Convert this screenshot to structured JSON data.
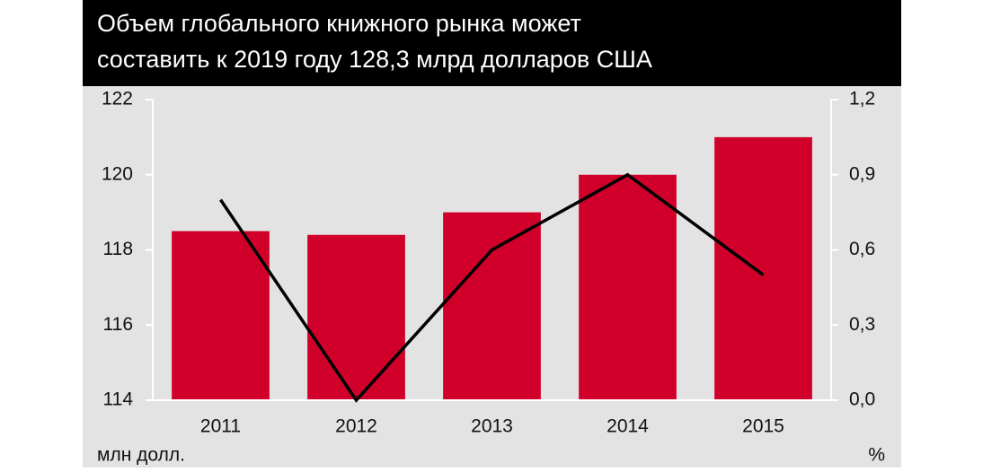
{
  "chart_data": {
    "type": "bar-line",
    "title": [
      "Объем глобального книжного рынка может",
      "составить к 2019 году 128,3 млрд долларов США"
    ],
    "categories": [
      "2011",
      "2012",
      "2013",
      "2014",
      "2015"
    ],
    "series": [
      {
        "type": "bar",
        "color": "#d0002a",
        "values": [
          118.5,
          118.4,
          119,
          120,
          121
        ]
      },
      {
        "type": "line",
        "color": "#000000",
        "axis": "y2",
        "values": [
          0.8,
          0.0,
          0.6,
          0.9,
          0.5
        ]
      }
    ],
    "ylim": [
      114,
      122
    ],
    "yticks": [
      114,
      116,
      118,
      120,
      122
    ],
    "y2lim": [
      0,
      1.2
    ],
    "y2ticks": [
      {
        "value": 0,
        "label": "0,0"
      },
      {
        "value": 0.3,
        "label": "0,3"
      },
      {
        "value": 0.6,
        "label": "0,6"
      },
      {
        "value": 0.9,
        "label": "0,9"
      },
      {
        "value": 1.2,
        "label": "1,2"
      }
    ],
    "ylabel": "млн долл.",
    "y2label": "%"
  }
}
